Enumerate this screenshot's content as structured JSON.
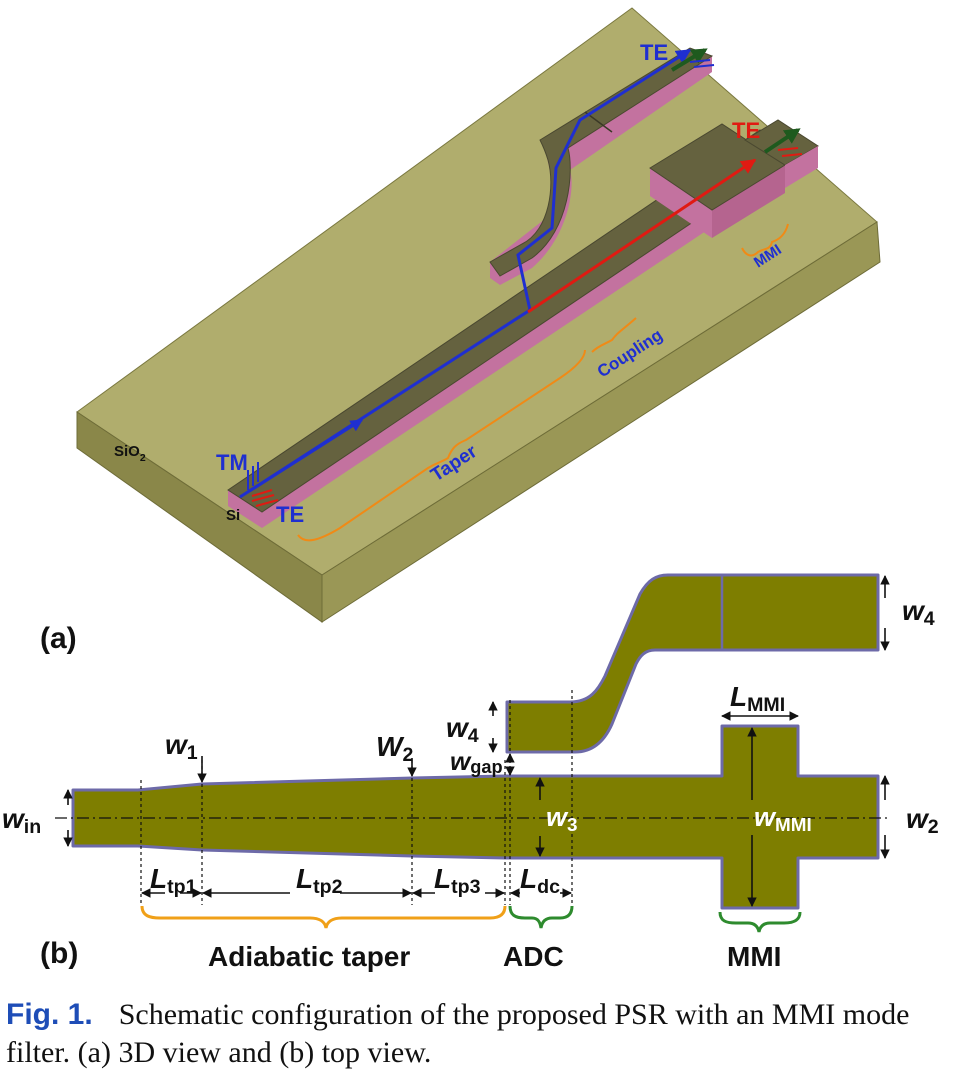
{
  "panel_a": {
    "label": "(a)",
    "substrate": "SiO",
    "substrate_sub": "2",
    "si": "Si",
    "tm_in": "TM",
    "te_in": "TE",
    "te_out_through": "TE",
    "te_out_cross": "TE",
    "taper": "Taper",
    "coupling": "Coupling",
    "mmi": "MMI"
  },
  "panel_b": {
    "label": "(b)",
    "w_in": "w",
    "w_in_sub": "in",
    "w1": "w",
    "w1_sub": "1",
    "w2_top": "W",
    "w2_top_sub": "2",
    "w3": "w",
    "w3_sub": "3",
    "w4_left": "w",
    "w4_left_sub": "4",
    "w4_right": "w",
    "w4_right_sub": "4",
    "w_gap": "w",
    "w_gap_sub": "gap",
    "w_mmi": "w",
    "w_mmi_sub": "MMI",
    "w2_right": "w",
    "w2_right_sub": "2",
    "l_mmi": "L",
    "l_mmi_sub": "MMI",
    "l_tp1": "L",
    "l_tp1_sub": "tp1",
    "l_tp2": "L",
    "l_tp2_sub": "tp2",
    "l_tp3": "L",
    "l_tp3_sub": "tp3",
    "l_dc": "L",
    "l_dc_sub": "dc",
    "section_taper": "Adiabatic taper",
    "section_adc": "ADC",
    "section_mmi": "MMI"
  },
  "caption": {
    "fig_label": "Fig. 1.",
    "text": "Schematic configuration of the proposed PSR with an MMI mode filter. (a) 3D view and (b) top view."
  },
  "colors": {
    "substrate_top": "#b0ad6d",
    "substrate_side": "#8a8749",
    "waveguide_top": "#65623f",
    "waveguide_side": "#c3729f",
    "waveguide_2d": "#7e7e00",
    "waveguide_2d_edge": "#6d6aa8",
    "orange_brace": "#f08a16",
    "green_brace": "#2e8b2e",
    "blue_path": "#1f2fd0",
    "red_path": "#e01a12"
  }
}
